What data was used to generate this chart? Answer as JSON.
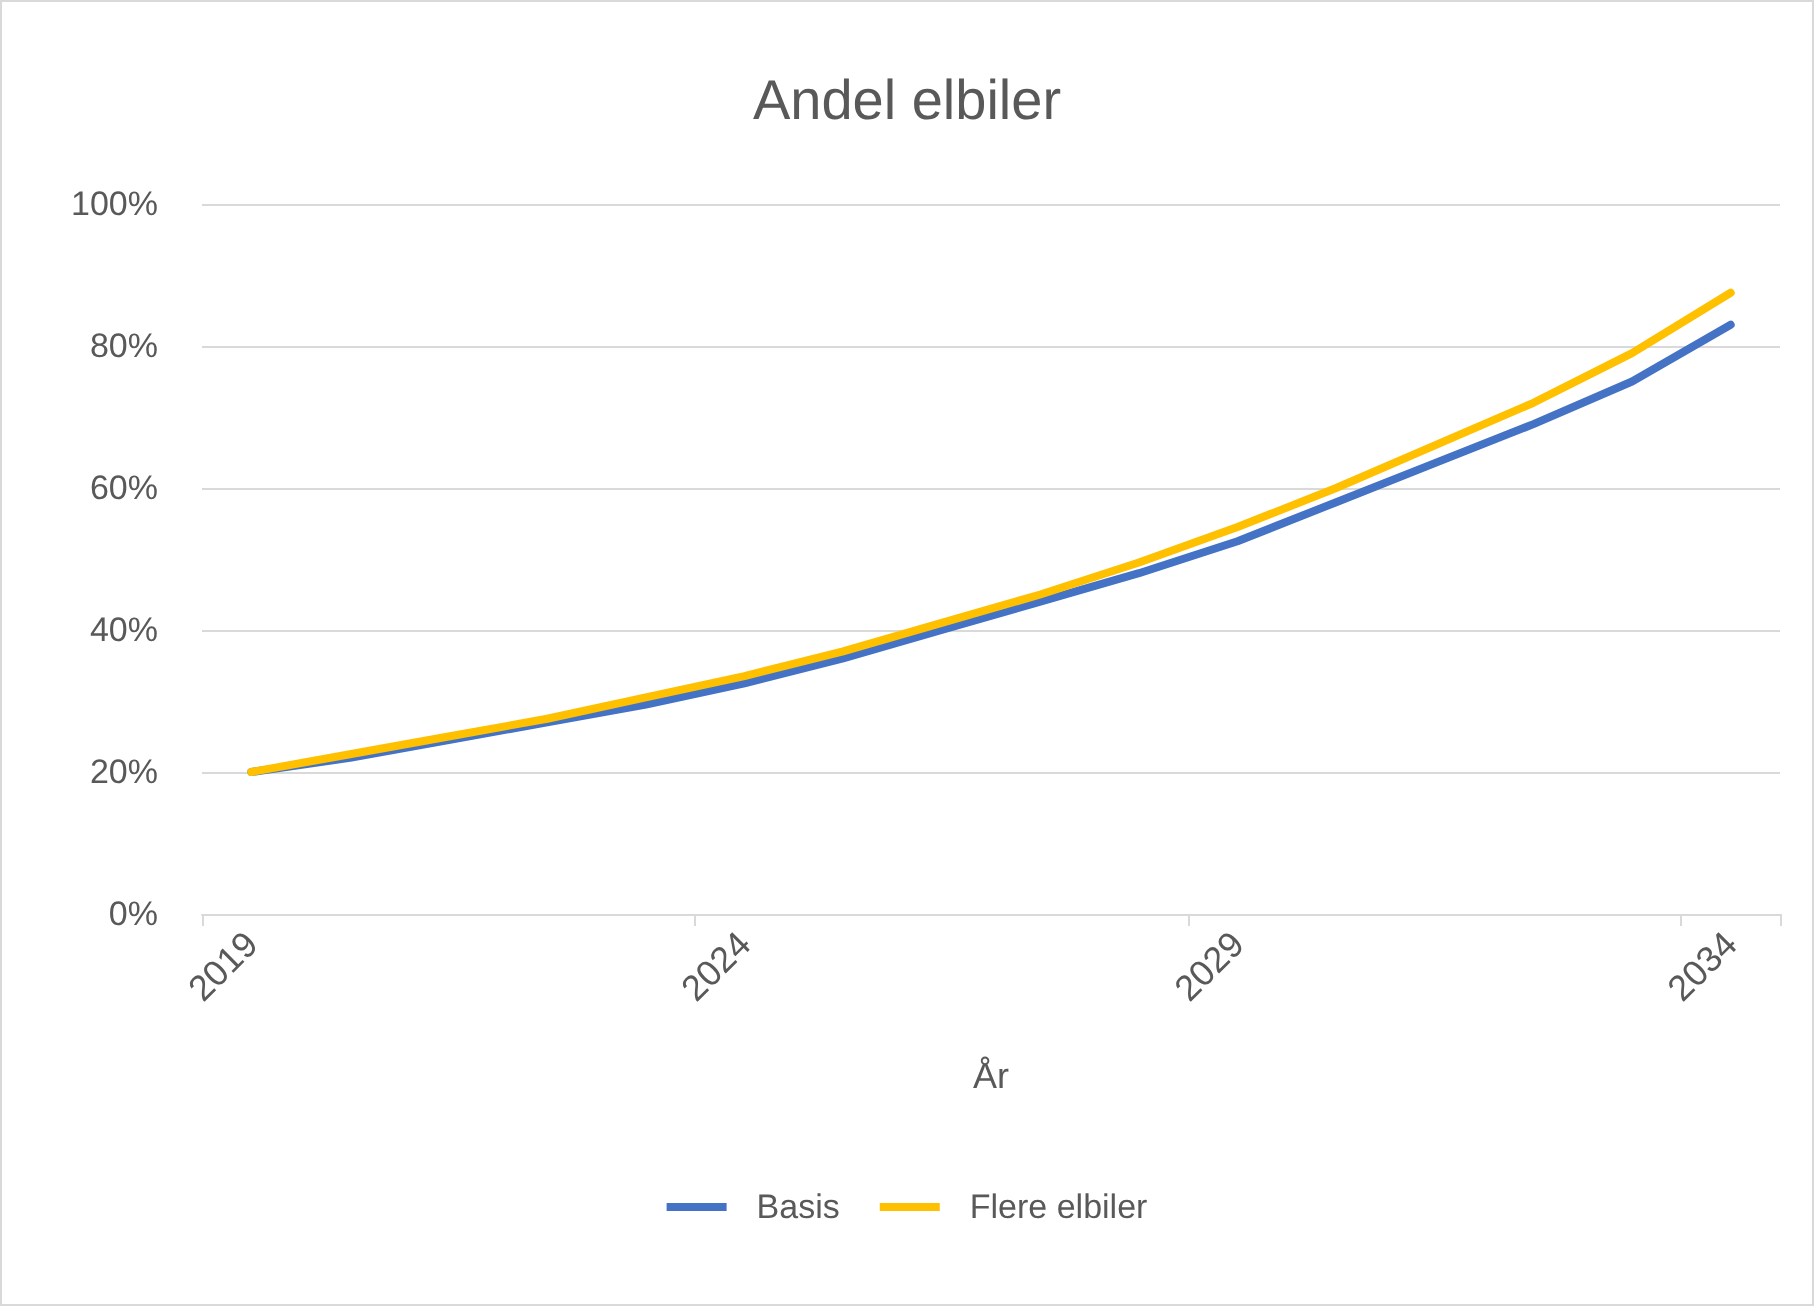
{
  "chart_data": {
    "type": "line",
    "title": "Andel elbiler",
    "xlabel": "År",
    "categories": [
      "2019",
      null,
      null,
      null,
      null,
      "2024",
      null,
      null,
      null,
      null,
      "2029",
      null,
      null,
      null,
      null,
      "2034"
    ],
    "series": [
      {
        "name": "Basis",
        "color": "#4472c4",
        "values": [
          20,
          22,
          24.5,
          27,
          29.5,
          32.5,
          36,
          40,
          44,
          48,
          52.5,
          58,
          63.5,
          69,
          75,
          83
        ]
      },
      {
        "name": "Flere elbiler",
        "color": "#ffc000",
        "values": [
          20,
          22.5,
          25,
          27.5,
          30.5,
          33.5,
          37,
          41,
          45,
          49.5,
          54.5,
          60,
          66,
          72,
          79,
          87.5
        ]
      }
    ],
    "ylim": [
      0,
      100
    ],
    "yticks": [
      {
        "value": 0,
        "label": "0%"
      },
      {
        "value": 20,
        "label": "20%"
      },
      {
        "value": 40,
        "label": "40%"
      },
      {
        "value": 60,
        "label": "60%"
      },
      {
        "value": 80,
        "label": "80%"
      },
      {
        "value": 100,
        "label": "100%"
      }
    ],
    "grid": "y",
    "legend": "bottom",
    "marker": "none",
    "line_style": "solid"
  }
}
